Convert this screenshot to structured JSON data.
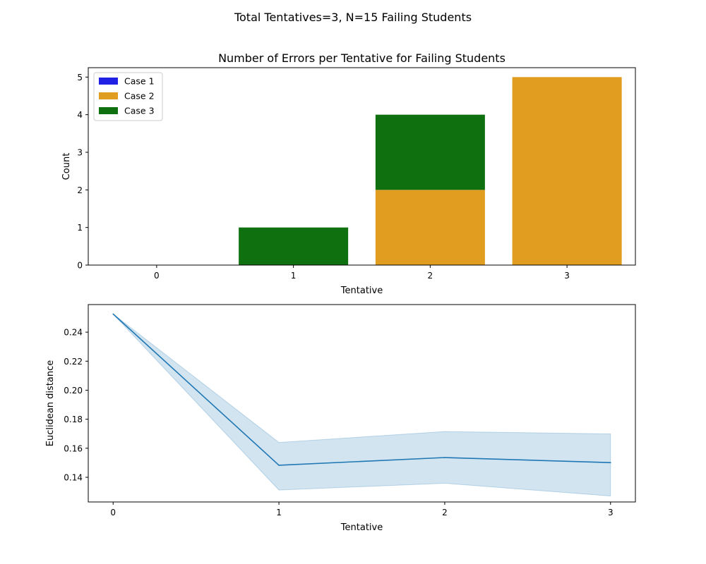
{
  "figure": {
    "suptitle": "Total Tentatives=3, N=15 Failing Students"
  },
  "chart_data": [
    {
      "type": "bar",
      "stacked": true,
      "title": "Number of Errors per Tentative for Failing Students",
      "xlabel": "Tentative",
      "ylabel": "Count",
      "categories": [
        "0",
        "1",
        "2",
        "3"
      ],
      "ylim": [
        0,
        5.25
      ],
      "yticks": [
        0,
        1,
        2,
        3,
        4,
        5
      ],
      "legend": "top-left",
      "grid": false,
      "series": [
        {
          "name": "Case 1",
          "color": "#2121e6",
          "values": [
            0,
            0,
            0,
            0
          ]
        },
        {
          "name": "Case 2",
          "color": "#e09d20",
          "values": [
            0,
            0,
            2,
            5
          ]
        },
        {
          "name": "Case 3",
          "color": "#0f7010",
          "values": [
            0,
            1,
            2,
            0
          ]
        }
      ]
    },
    {
      "type": "line",
      "xlabel": "Tentative",
      "ylabel": "Euclidean distance",
      "x": [
        0,
        1,
        2,
        3
      ],
      "xticks": [
        "0",
        "1",
        "2",
        "3"
      ],
      "xlim": [
        -0.15,
        3.15
      ],
      "ylim": [
        0.123,
        0.259
      ],
      "yticks": [
        0.14,
        0.16,
        0.18,
        0.2,
        0.22,
        0.24
      ],
      "ytick_labels": [
        "0.14",
        "0.16",
        "0.18",
        "0.20",
        "0.22",
        "0.24"
      ],
      "grid": false,
      "series": [
        {
          "color": "#1f77b4",
          "values": [
            0.2525,
            0.1483,
            0.1536,
            0.1501
          ],
          "ci_lower": [
            0.2525,
            0.1312,
            0.1359,
            0.1271
          ],
          "ci_upper": [
            0.2525,
            0.164,
            0.1715,
            0.1699
          ],
          "band_color": "#1f77b4",
          "band_opacity": 0.2
        }
      ]
    }
  ]
}
